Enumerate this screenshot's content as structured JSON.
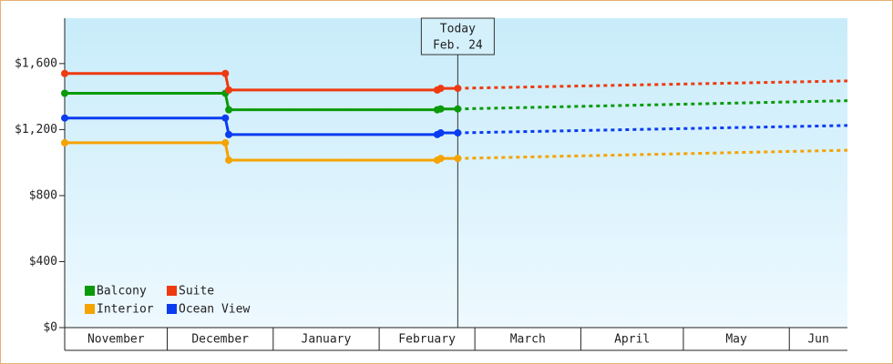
{
  "chart_data": {
    "type": "line",
    "today_x": 115,
    "today_label": [
      "Today",
      "Feb. 24"
    ],
    "x": [
      0,
      47,
      48,
      109,
      110,
      115,
      229
    ],
    "xlim": [
      0,
      229
    ],
    "xticks": [
      {
        "value": 0,
        "label": "November"
      },
      {
        "value": 30,
        "label": "December"
      },
      {
        "value": 61,
        "label": "January"
      },
      {
        "value": 92,
        "label": "February"
      },
      {
        "value": 120,
        "label": "March"
      },
      {
        "value": 151,
        "label": "April"
      },
      {
        "value": 181,
        "label": "May"
      },
      {
        "value": 212,
        "label": "Jun"
      }
    ],
    "ylim": [
      0,
      1875
    ],
    "yticks": [
      {
        "value": 0,
        "label": "$0"
      },
      {
        "value": 400,
        "label": "$400"
      },
      {
        "value": 800,
        "label": "$800"
      },
      {
        "value": 1200,
        "label": "$1,200"
      },
      {
        "value": 1600,
        "label": "$1,600"
      }
    ],
    "series": [
      {
        "name": "Balcony",
        "color": "#0a9a0a",
        "values": [
          1420,
          1420,
          1320,
          1320,
          1325,
          1325,
          1375
        ]
      },
      {
        "name": "Interior",
        "color": "#f5a300",
        "values": [
          1120,
          1120,
          1015,
          1015,
          1025,
          1025,
          1075
        ]
      },
      {
        "name": "Suite",
        "color": "#ee3a10",
        "values": [
          1540,
          1540,
          1440,
          1440,
          1450,
          1450,
          1495
        ]
      },
      {
        "name": "Ocean View",
        "color": "#0a3cf0",
        "values": [
          1270,
          1270,
          1170,
          1170,
          1180,
          1180,
          1225
        ]
      }
    ]
  }
}
